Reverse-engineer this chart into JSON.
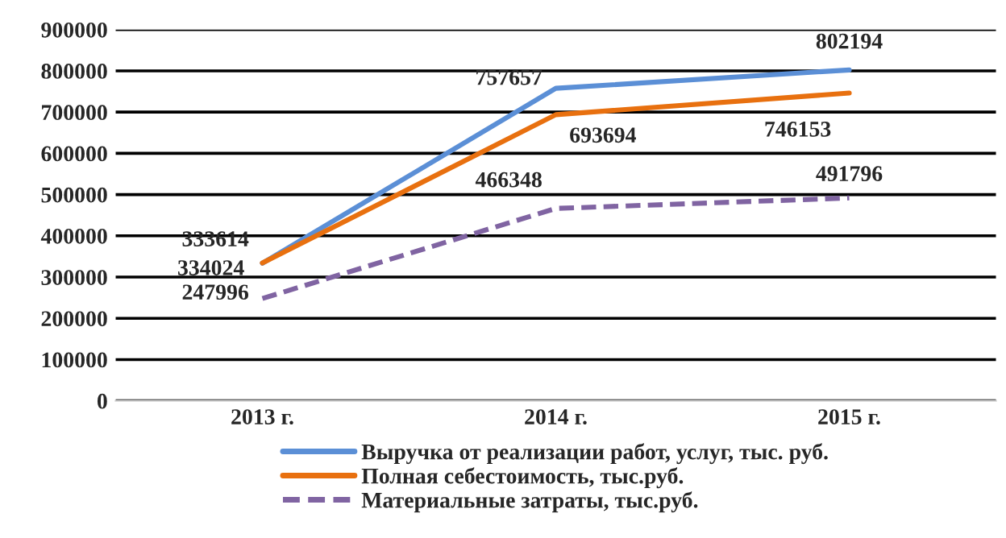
{
  "chart_data": {
    "type": "line",
    "categories": [
      "2013 г.",
      "2014 г.",
      "2015 г."
    ],
    "series": [
      {
        "name": "Выручка от реализации работ, услуг, тыс. руб.",
        "color": "#5b8fd6",
        "values": [
          333614,
          757657,
          802194
        ],
        "line_style": "solid"
      },
      {
        "name": "Полная себестоимость, тыс.руб.",
        "color": "#e8700f",
        "values": [
          334024,
          693694,
          746153
        ],
        "line_style": "solid"
      },
      {
        "name": "Материальные затраты, тыс.руб.",
        "color": "#8064a2",
        "values": [
          247996,
          466348,
          491796
        ],
        "line_style": "dashed"
      }
    ],
    "ylim": [
      0,
      900000
    ],
    "yticks": [
      0,
      100000,
      200000,
      300000,
      400000,
      500000,
      600000,
      700000,
      800000,
      900000
    ],
    "grid": "y",
    "legend": "bottom",
    "data_labels": true,
    "marker": "none"
  }
}
